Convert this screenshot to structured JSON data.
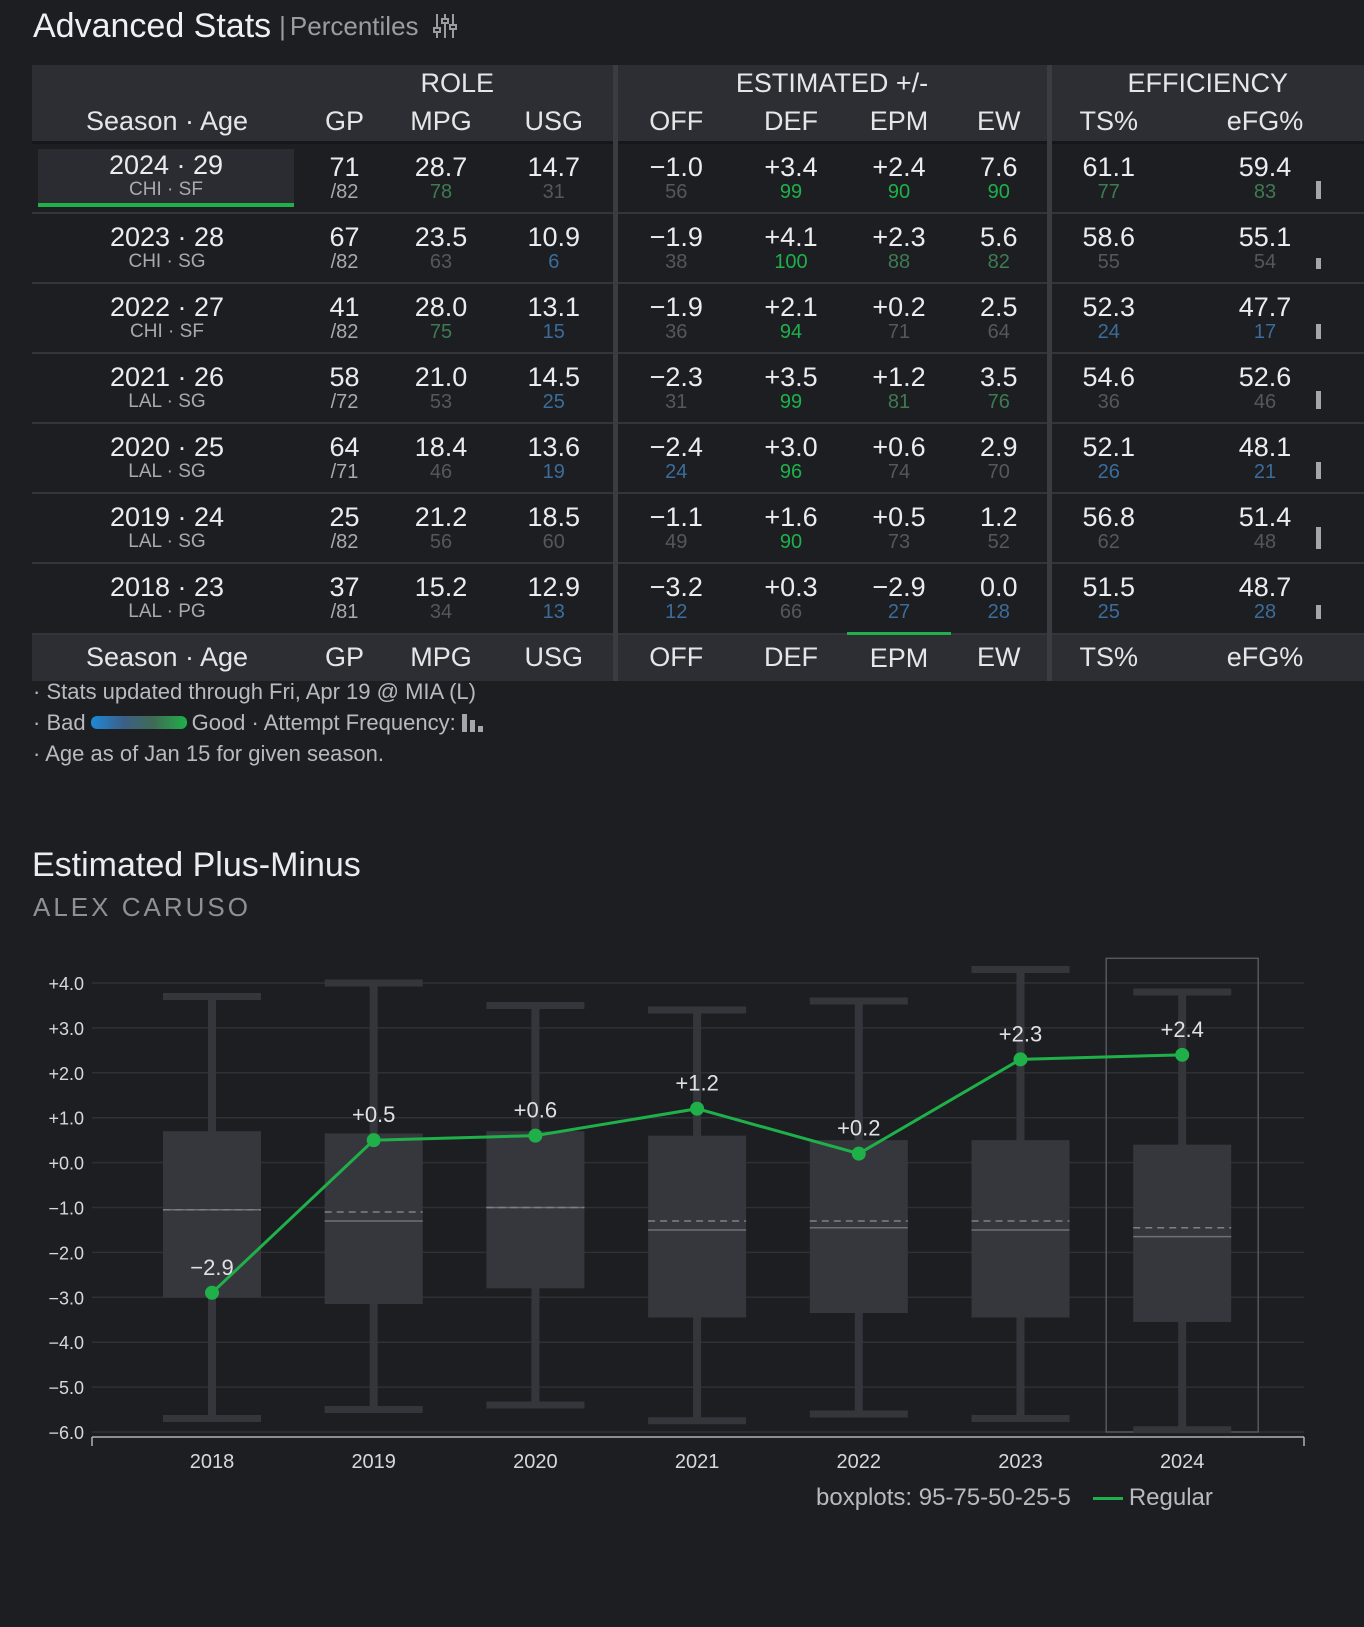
{
  "header": {
    "title": "Advanced Stats",
    "separator": "|",
    "subtitle": "Percentiles",
    "settings_icon": "sliders-icon"
  },
  "table": {
    "groups": {
      "role": "ROLE",
      "estimated": "ESTIMATED +/-",
      "efficiency": "EFFICIENCY"
    },
    "columns": [
      "Season · Age",
      "GP",
      "MPG",
      "USG",
      "OFF",
      "DEF",
      "EPM",
      "EW",
      "TS%",
      "eFG%"
    ],
    "rows": [
      {
        "season": "2024 · 29",
        "team": "CHI · SF",
        "gp": "71",
        "gp_total": "/82",
        "mpg": "28.7",
        "mpg_p": "78",
        "usg": "14.7",
        "usg_p": "31",
        "off": "−1.0",
        "off_p": "56",
        "def": "+3.4",
        "def_p": "99",
        "epm": "+2.4",
        "epm_p": "90",
        "ew": "7.6",
        "ew_p": "90",
        "ts": "61.1",
        "ts_p": "77",
        "efg": "59.4",
        "efg_p": "83",
        "freq": 0.8
      },
      {
        "season": "2023 · 28",
        "team": "CHI · SG",
        "gp": "67",
        "gp_total": "/82",
        "mpg": "23.5",
        "mpg_p": "63",
        "usg": "10.9",
        "usg_p": "6",
        "off": "−1.9",
        "off_p": "38",
        "def": "+4.1",
        "def_p": "100",
        "epm": "+2.3",
        "epm_p": "88",
        "ew": "5.6",
        "ew_p": "82",
        "ts": "58.6",
        "ts_p": "55",
        "efg": "55.1",
        "efg_p": "54",
        "freq": 0.5
      },
      {
        "season": "2022 · 27",
        "team": "CHI · SF",
        "gp": "41",
        "gp_total": "/82",
        "mpg": "28.0",
        "mpg_p": "75",
        "usg": "13.1",
        "usg_p": "15",
        "off": "−1.9",
        "off_p": "36",
        "def": "+2.1",
        "def_p": "94",
        "epm": "+0.2",
        "epm_p": "71",
        "ew": "2.5",
        "ew_p": "64",
        "ts": "52.3",
        "ts_p": "24",
        "efg": "47.7",
        "efg_p": "17",
        "freq": 0.7
      },
      {
        "season": "2021 · 26",
        "team": "LAL · SG",
        "gp": "58",
        "gp_total": "/72",
        "mpg": "21.0",
        "mpg_p": "53",
        "usg": "14.5",
        "usg_p": "25",
        "off": "−2.3",
        "off_p": "31",
        "def": "+3.5",
        "def_p": "99",
        "epm": "+1.2",
        "epm_p": "81",
        "ew": "3.5",
        "ew_p": "76",
        "ts": "54.6",
        "ts_p": "36",
        "efg": "52.6",
        "efg_p": "46",
        "freq": 0.8
      },
      {
        "season": "2020 · 25",
        "team": "LAL · SG",
        "gp": "64",
        "gp_total": "/71",
        "mpg": "18.4",
        "mpg_p": "46",
        "usg": "13.6",
        "usg_p": "19",
        "off": "−2.4",
        "off_p": "24",
        "def": "+3.0",
        "def_p": "96",
        "epm": "+0.6",
        "epm_p": "74",
        "ew": "2.9",
        "ew_p": "70",
        "ts": "52.1",
        "ts_p": "26",
        "efg": "48.1",
        "efg_p": "21",
        "freq": 0.75
      },
      {
        "season": "2019 · 24",
        "team": "LAL · SG",
        "gp": "25",
        "gp_total": "/82",
        "mpg": "21.2",
        "mpg_p": "56",
        "usg": "18.5",
        "usg_p": "60",
        "off": "−1.1",
        "off_p": "49",
        "def": "+1.6",
        "def_p": "90",
        "epm": "+0.5",
        "epm_p": "73",
        "ew": "1.2",
        "ew_p": "52",
        "ts": "56.8",
        "ts_p": "62",
        "efg": "51.4",
        "efg_p": "48",
        "freq": 1.0
      },
      {
        "season": "2018 · 23",
        "team": "LAL · PG",
        "gp": "37",
        "gp_total": "/81",
        "mpg": "15.2",
        "mpg_p": "34",
        "usg": "12.9",
        "usg_p": "13",
        "off": "−3.2",
        "off_p": "12",
        "def": "+0.3",
        "def_p": "66",
        "epm": "−2.9",
        "epm_p": "27",
        "ew": "0.0",
        "ew_p": "28",
        "ts": "51.5",
        "ts_p": "25",
        "efg": "48.7",
        "efg_p": "28",
        "freq": 0.65
      }
    ]
  },
  "notes": {
    "line1": "· Stats updated through Fri, Apr 19 @ MIA (L)",
    "line2_prefix": "· Bad",
    "line2_good": "Good · Attempt Frequency:",
    "line3": "· Age as of Jan 15 for given season."
  },
  "colors": {
    "accent": "#1fb04a",
    "bad": "#1e88d8",
    "pct_hi": "#2fa84f",
    "pct_blue": "#3c6c9a",
    "pct_neutral": "#55575c"
  },
  "chart_data": {
    "type": "line",
    "title": "Estimated Plus-Minus",
    "subtitle": "ALEX CARUSO",
    "x": [
      "2018",
      "2019",
      "2020",
      "2021",
      "2022",
      "2023",
      "2024"
    ],
    "ylim": [
      -6.0,
      4.0
    ],
    "yticks": [
      "+4.0",
      "+3.0",
      "+2.0",
      "+1.0",
      "+0.0",
      "−1.0",
      "−2.0",
      "−3.0",
      "−4.0",
      "−5.0",
      "−6.0"
    ],
    "series": [
      {
        "name": "Regular",
        "values": [
          -2.9,
          0.5,
          0.6,
          1.2,
          0.2,
          2.3,
          2.4
        ],
        "labels": [
          "−2.9",
          "+0.5",
          "+0.6",
          "+1.2",
          "+0.2",
          "+2.3",
          "+2.4"
        ]
      }
    ],
    "boxplots": [
      {
        "p95": 3.7,
        "p75": 0.7,
        "median": -1.05,
        "mean": -1.05,
        "p25": -3.0,
        "p5": -5.7
      },
      {
        "p95": 4.0,
        "p75": 0.65,
        "median": -1.3,
        "mean": -1.1,
        "p25": -3.15,
        "p5": -5.5
      },
      {
        "p95": 3.5,
        "p75": 0.7,
        "median": -1.0,
        "mean": -1.0,
        "p25": -2.8,
        "p5": -5.4
      },
      {
        "p95": 3.4,
        "p75": 0.6,
        "median": -1.5,
        "mean": -1.3,
        "p25": -3.45,
        "p5": -5.75
      },
      {
        "p95": 3.6,
        "p75": 0.5,
        "median": -1.45,
        "mean": -1.3,
        "p25": -3.35,
        "p5": -5.6
      },
      {
        "p95": 4.3,
        "p75": 0.5,
        "median": -1.5,
        "mean": -1.3,
        "p25": -3.45,
        "p5": -5.7
      },
      {
        "p95": 3.8,
        "p75": 0.4,
        "median": -1.65,
        "mean": -1.45,
        "p25": -3.55,
        "p5": -5.95
      }
    ],
    "highlight": "2024",
    "legend": {
      "boxplots": "boxplots: 95-75-50-25-5",
      "series": "Regular"
    }
  }
}
